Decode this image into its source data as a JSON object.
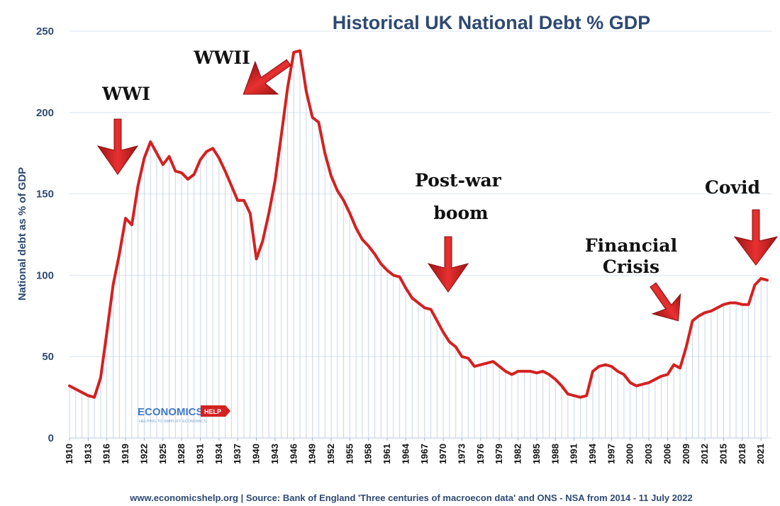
{
  "chart_data": {
    "type": "area",
    "title": "Historical UK National Debt % GDP",
    "ylabel": "National debt as % of GDP",
    "xlabel": "",
    "ylim": [
      0,
      250
    ],
    "yticks": [
      0,
      50,
      100,
      150,
      200,
      250
    ],
    "xtick_labels": [
      "1910",
      "1913",
      "1916",
      "1919",
      "1922",
      "1925",
      "1928",
      "1931",
      "1934",
      "1937",
      "1940",
      "1943",
      "1946",
      "1949",
      "1952",
      "1955",
      "1958",
      "1961",
      "1964",
      "1967",
      "1970",
      "1973",
      "1976",
      "1979",
      "1982",
      "1985",
      "1988",
      "1991",
      "1994",
      "1997",
      "2000",
      "2003",
      "2006",
      "2009",
      "2012",
      "2015",
      "2018",
      "2021"
    ],
    "grid": true,
    "legend": "none",
    "series": [
      {
        "color": "#d42121",
        "x": [
          1910,
          1911,
          1912,
          1913,
          1914,
          1915,
          1916,
          1917,
          1918,
          1919,
          1920,
          1921,
          1922,
          1923,
          1924,
          1925,
          1926,
          1927,
          1928,
          1929,
          1930,
          1931,
          1932,
          1933,
          1934,
          1935,
          1936,
          1937,
          1938,
          1939,
          1940,
          1941,
          1942,
          1943,
          1944,
          1945,
          1946,
          1947,
          1948,
          1949,
          1950,
          1951,
          1952,
          1953,
          1954,
          1955,
          1956,
          1957,
          1958,
          1959,
          1960,
          1961,
          1962,
          1963,
          1964,
          1965,
          1966,
          1967,
          1968,
          1969,
          1970,
          1971,
          1972,
          1973,
          1974,
          1975,
          1976,
          1977,
          1978,
          1979,
          1980,
          1981,
          1982,
          1983,
          1984,
          1985,
          1986,
          1987,
          1988,
          1989,
          1990,
          1991,
          1992,
          1993,
          1994,
          1995,
          1996,
          1997,
          1998,
          1999,
          2000,
          2001,
          2002,
          2003,
          2004,
          2005,
          2006,
          2007,
          2008,
          2009,
          2010,
          2011,
          2012,
          2013,
          2014,
          2015,
          2016,
          2017,
          2018,
          2019,
          2020,
          2021,
          2022
        ],
        "values": [
          32,
          30,
          28,
          26,
          25,
          37,
          65,
          94,
          113,
          135,
          131,
          155,
          172,
          182,
          175,
          168,
          173,
          164,
          163,
          159,
          162,
          171,
          176,
          178,
          172,
          164,
          155,
          146,
          146,
          138,
          110,
          121,
          138,
          158,
          186,
          215,
          237,
          238,
          213,
          197,
          194,
          175,
          161,
          152,
          146,
          138,
          129,
          122,
          118,
          113,
          107,
          103,
          100,
          99,
          92,
          86,
          83,
          80,
          79,
          72,
          65,
          59,
          56,
          50,
          49,
          44,
          45,
          46,
          47,
          44,
          41,
          39,
          41,
          41,
          41,
          40,
          41,
          39,
          36,
          32,
          27,
          26,
          25,
          26,
          41,
          44,
          45,
          44,
          41,
          39,
          34,
          32,
          33,
          34,
          36,
          38,
          39,
          45,
          43,
          56,
          72,
          75,
          77,
          78,
          80,
          82,
          83,
          83,
          82,
          82,
          94,
          98,
          97
        ]
      }
    ],
    "annotations": [
      {
        "text": "WWI"
      },
      {
        "text": "WWII"
      },
      {
        "text": "Post-war"
      },
      {
        "text": "boom"
      },
      {
        "text": "Financial"
      },
      {
        "text": "Crisis"
      },
      {
        "text": "Covid"
      }
    ],
    "source": "www.economicshelp.org | Source: Bank of England 'Three centuries of macroecon data' and ONS - NSA from 2014  - 11 July 2022",
    "logo": {
      "name": "ECONOMICS",
      "badge": "HELP",
      "tagline": "HELPING TO SIMPLIFY ECONOMICS"
    }
  }
}
